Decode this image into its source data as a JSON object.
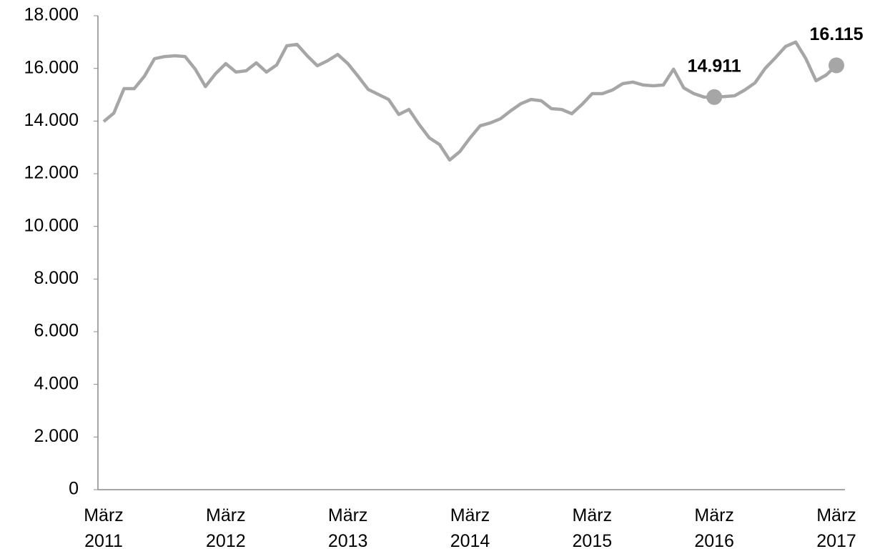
{
  "chart_data": {
    "type": "line",
    "categories": [
      "März 2011",
      null,
      null,
      null,
      null,
      null,
      null,
      null,
      null,
      null,
      null,
      null,
      "März 2012",
      null,
      null,
      null,
      null,
      null,
      null,
      null,
      null,
      null,
      null,
      null,
      "März 2013",
      null,
      null,
      null,
      null,
      null,
      null,
      null,
      null,
      null,
      null,
      null,
      "März 2014",
      null,
      null,
      null,
      null,
      null,
      null,
      null,
      null,
      null,
      null,
      null,
      "März 2015",
      null,
      null,
      null,
      null,
      null,
      null,
      null,
      null,
      null,
      null,
      null,
      "März 2016",
      null,
      null,
      null,
      null,
      null,
      null,
      null,
      null,
      null,
      null,
      null,
      "März 2017"
    ],
    "series": [
      {
        "color": "#a6a6a6",
        "values": [
          13980,
          14300,
          15230,
          15230,
          15700,
          16370,
          16450,
          16480,
          16450,
          15970,
          15310,
          15800,
          16180,
          15860,
          15910,
          16210,
          15860,
          16130,
          16860,
          16910,
          16480,
          16100,
          16290,
          16530,
          16180,
          15700,
          15200,
          15010,
          14820,
          14250,
          14440,
          13870,
          13360,
          13110,
          12520,
          12840,
          13360,
          13820,
          13930,
          14090,
          14390,
          14660,
          14820,
          14770,
          14470,
          14440,
          14280,
          14630,
          15040,
          15040,
          15180,
          15420,
          15480,
          15370,
          15340,
          15370,
          15970,
          15260,
          15040,
          14910,
          14911,
          14930,
          14960,
          15180,
          15450,
          16000,
          16400,
          16830,
          17000,
          16370,
          15530,
          15750,
          16115
        ],
        "value_labels": [
          null,
          null,
          null,
          null,
          null,
          null,
          null,
          null,
          null,
          null,
          null,
          null,
          null,
          null,
          null,
          null,
          null,
          null,
          null,
          null,
          null,
          null,
          null,
          null,
          null,
          null,
          null,
          null,
          null,
          null,
          null,
          null,
          null,
          null,
          null,
          null,
          null,
          null,
          null,
          null,
          null,
          null,
          null,
          null,
          null,
          null,
          null,
          null,
          null,
          null,
          null,
          null,
          null,
          null,
          null,
          null,
          null,
          null,
          null,
          null,
          "14.911",
          null,
          null,
          null,
          null,
          null,
          null,
          null,
          null,
          null,
          null,
          null,
          "16.115"
        ]
      }
    ],
    "ylim": [
      0,
      18000
    ],
    "yticks": [
      0,
      {
        "value": 2000,
        "label": "2.000"
      },
      {
        "value": 4000,
        "label": "4.000"
      },
      {
        "value": 6000,
        "label": "6.000"
      },
      {
        "value": 8000,
        "label": "8.000"
      },
      {
        "value": 10000,
        "label": "10.000"
      },
      {
        "value": 12000,
        "label": "12.000"
      },
      {
        "value": 14000,
        "label": "14.000"
      },
      {
        "value": 16000,
        "label": "16.000"
      },
      {
        "value": 18000,
        "label": "18.000"
      }
    ],
    "grid": false
  }
}
